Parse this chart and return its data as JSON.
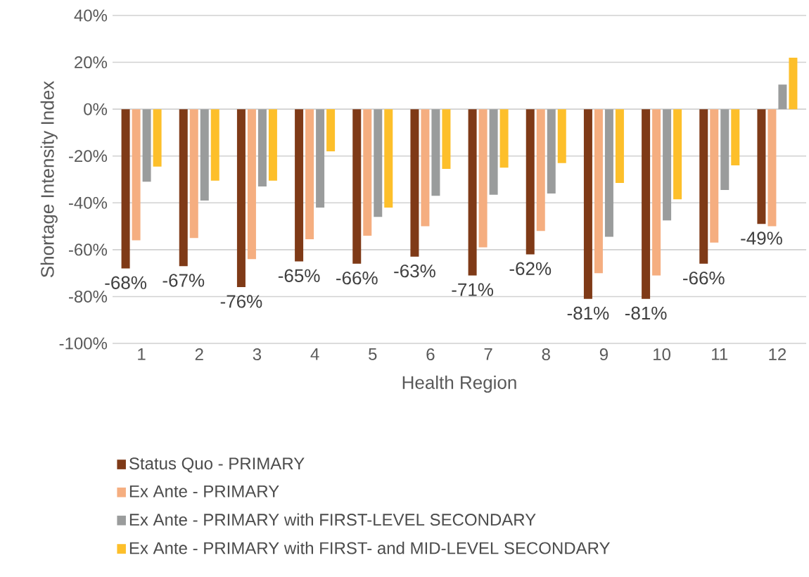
{
  "chart_data": {
    "type": "bar",
    "xlabel": "Health Region",
    "ylabel": "Shortage Intensity Index",
    "categories": [
      "1",
      "2",
      "3",
      "4",
      "5",
      "6",
      "7",
      "8",
      "9",
      "10",
      "11",
      "12"
    ],
    "series": [
      {
        "name": "Status Quo - PRIMARY",
        "color": "#7f3a17",
        "values": [
          -68,
          -67,
          -76,
          -65,
          -66,
          -63,
          -71,
          -62,
          -81,
          -81,
          -66,
          -49
        ],
        "value_labels": [
          "-68%",
          "-67%",
          "-76%",
          "-65%",
          "-66%",
          "-63%",
          "-71%",
          "-62%",
          "-81%",
          "-81%",
          "-66%",
          "-49%"
        ]
      },
      {
        "name": "Ex Ante - PRIMARY",
        "color": "#f5ae80",
        "values": [
          -56,
          -55,
          -64,
          -55.5,
          -54,
          -50,
          -59,
          -52,
          -70,
          -71,
          -57,
          -50
        ]
      },
      {
        "name": "Ex Ante - PRIMARY with FIRST-LEVEL SECONDARY",
        "color": "#9a9c9c",
        "values": [
          -31,
          -39,
          -33,
          -42,
          -46,
          -37,
          -36.5,
          -36,
          -54.5,
          -47.5,
          -34.5,
          10.5
        ]
      },
      {
        "name": "Ex Ante - PRIMARY with FIRST- and MID-LEVEL SECONDARY",
        "color": "#fdbf2a",
        "values": [
          -24.5,
          -30.5,
          -30.5,
          -18,
          -42,
          -25.5,
          -25,
          -23,
          -31.5,
          -38.5,
          -24,
          22
        ]
      }
    ],
    "ylim": [
      -100,
      40
    ],
    "yticks": [
      {
        "value": -100,
        "label": "-100%"
      },
      {
        "value": -80,
        "label": "-80%"
      },
      {
        "value": -60,
        "label": "-60%"
      },
      {
        "value": -40,
        "label": "-40%"
      },
      {
        "value": -20,
        "label": "-20%"
      },
      {
        "value": 0,
        "label": "0%"
      },
      {
        "value": 20,
        "label": "20%"
      },
      {
        "value": 40,
        "label": "40%"
      }
    ],
    "grid": "y",
    "legend": "bottom"
  }
}
